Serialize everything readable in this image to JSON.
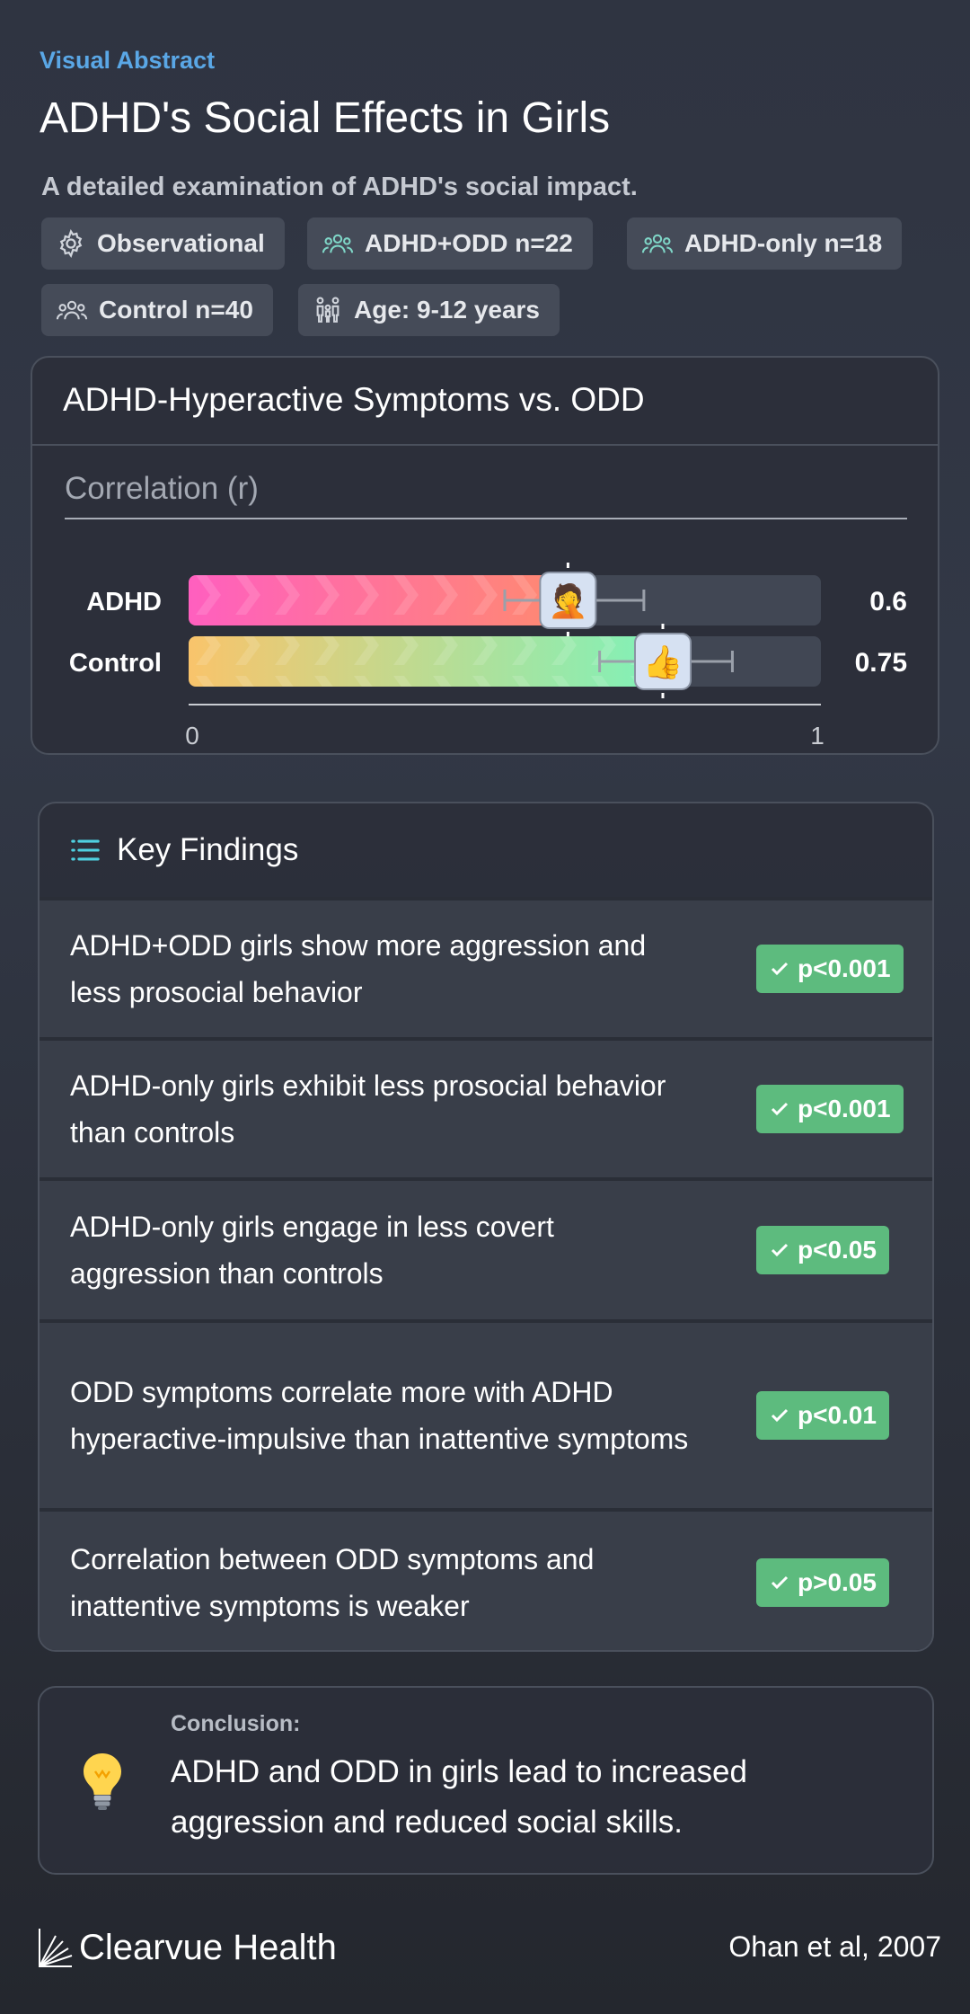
{
  "header": {
    "eyebrow": "Visual Abstract",
    "title": "ADHD's Social Effects in Girls",
    "subtitle": "A detailed examination of ADHD's social impact."
  },
  "chips": [
    {
      "icon": "gear-icon",
      "label": "Observational"
    },
    {
      "icon": "group-icon",
      "label": "ADHD+ODD n=22"
    },
    {
      "icon": "group-icon",
      "label": "ADHD-only n=18"
    },
    {
      "icon": "group-icon",
      "label": "Control n=40"
    },
    {
      "icon": "family-icon",
      "label": "Age: 9-12 years"
    }
  ],
  "chart_data": {
    "type": "bar",
    "orientation": "horizontal",
    "title": "ADHD-Hyperactive Symptoms vs. ODD",
    "xlabel": "Correlation (r)",
    "categories": [
      "ADHD",
      "Control"
    ],
    "values": [
      0.6,
      0.75
    ],
    "value_labels": [
      "0.6",
      "0.75"
    ],
    "error_low": [
      0.5,
      0.65
    ],
    "error_high": [
      0.72,
      0.86
    ],
    "markers": [
      "🤦",
      "👍"
    ],
    "xlim": [
      0,
      1
    ],
    "ticks": [
      "0",
      "1"
    ],
    "colors": {
      "ADHD": [
        "#ff5fbf",
        "#ff8a70"
      ],
      "Control": [
        "#f9c46b",
        "#7ff2b9"
      ]
    }
  },
  "findings": {
    "heading": "Key Findings",
    "items": [
      {
        "text": "ADHD+ODD girls show more aggression and less prosocial behavior",
        "badge": "p<0.001"
      },
      {
        "text": "ADHD-only girls exhibit less prosocial behavior than controls",
        "badge": "p<0.001"
      },
      {
        "text": "ADHD-only girls engage in less covert aggression than controls",
        "badge": "p<0.05"
      },
      {
        "text": "ODD symptoms correlate more with ADHD hyperactive-impulsive than inattentive symptoms",
        "badge": "p<0.01"
      },
      {
        "text": "Correlation between ODD symptoms and inattentive symptoms is weaker",
        "badge": "p>0.05"
      }
    ]
  },
  "conclusion": {
    "icon": "💡",
    "label": "Conclusion:",
    "text": "ADHD and ODD in girls lead to increased aggression and reduced social skills."
  },
  "footer": {
    "brand": "Clearvue Health",
    "citation": "Ohan et al, 2007"
  },
  "colors": {
    "accent": "#5aa7e6",
    "badge": "#5dbb7e",
    "chip": "#454b58"
  }
}
